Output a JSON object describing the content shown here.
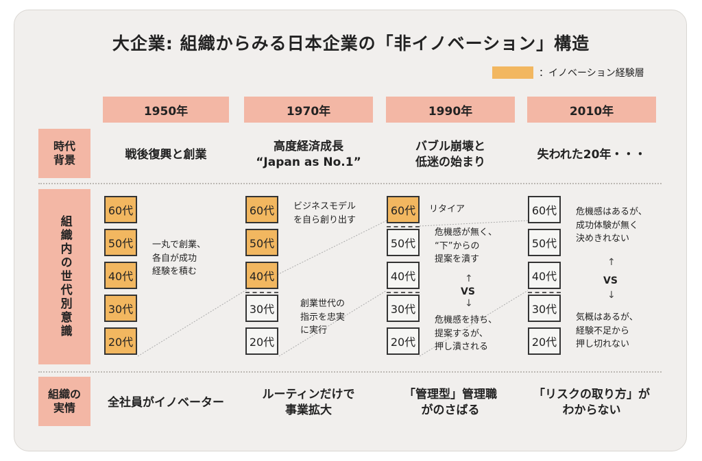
{
  "title": "大企業: 組織からみる日本企業の「非イノベーション」構造",
  "legend": {
    "label": "：イノベーション経験層",
    "color": "#f2b760"
  },
  "row_labels": {
    "background": "時代\n背景",
    "generations": "組織内の世代別意識",
    "reality": "組織の\n実情"
  },
  "eras": [
    {
      "year": "1950年",
      "background": "戦後復興と創業",
      "reality": "全社員がイノベーター",
      "boxes": [
        "60代",
        "50代",
        "40代",
        "30代",
        "20代"
      ],
      "notes": [
        "一丸で創業、\n各自が成功\n経験を積む"
      ]
    },
    {
      "year": "1970年",
      "background": "高度経済成長\n“Japan as No.1”",
      "reality": "ルーティンだけで\n事業拡大",
      "boxes": [
        "60代",
        "50代",
        "40代",
        "30代",
        "20代"
      ],
      "notes": [
        "ビジネスモデル\nを自ら創り出す",
        "創業世代の\n指示を忠実\nに実行"
      ]
    },
    {
      "year": "1990年",
      "background": "バブル崩壊と\n低迷の始まり",
      "reality": "「管理型」管理職\nがのさばる",
      "boxes": [
        "60代",
        "50代",
        "40代",
        "30代",
        "20代"
      ],
      "notes": [
        "リタイア",
        "危機感が無く、\n“下”からの\n提案を潰す",
        "危機感を持ち、\n提案するが、\n押し潰される"
      ],
      "vs": "VS"
    },
    {
      "year": "2010年",
      "background": "失われた20年・・・",
      "reality": "「リスクの取り方」が\nわからない",
      "boxes": [
        "60代",
        "50代",
        "40代",
        "30代",
        "20代"
      ],
      "notes": [
        "危機感はあるが、\n成功体験が無く\n決めきれない",
        "気概はあるが、\n経験不足から\n押し切れない"
      ],
      "vs": "VS"
    }
  ]
}
